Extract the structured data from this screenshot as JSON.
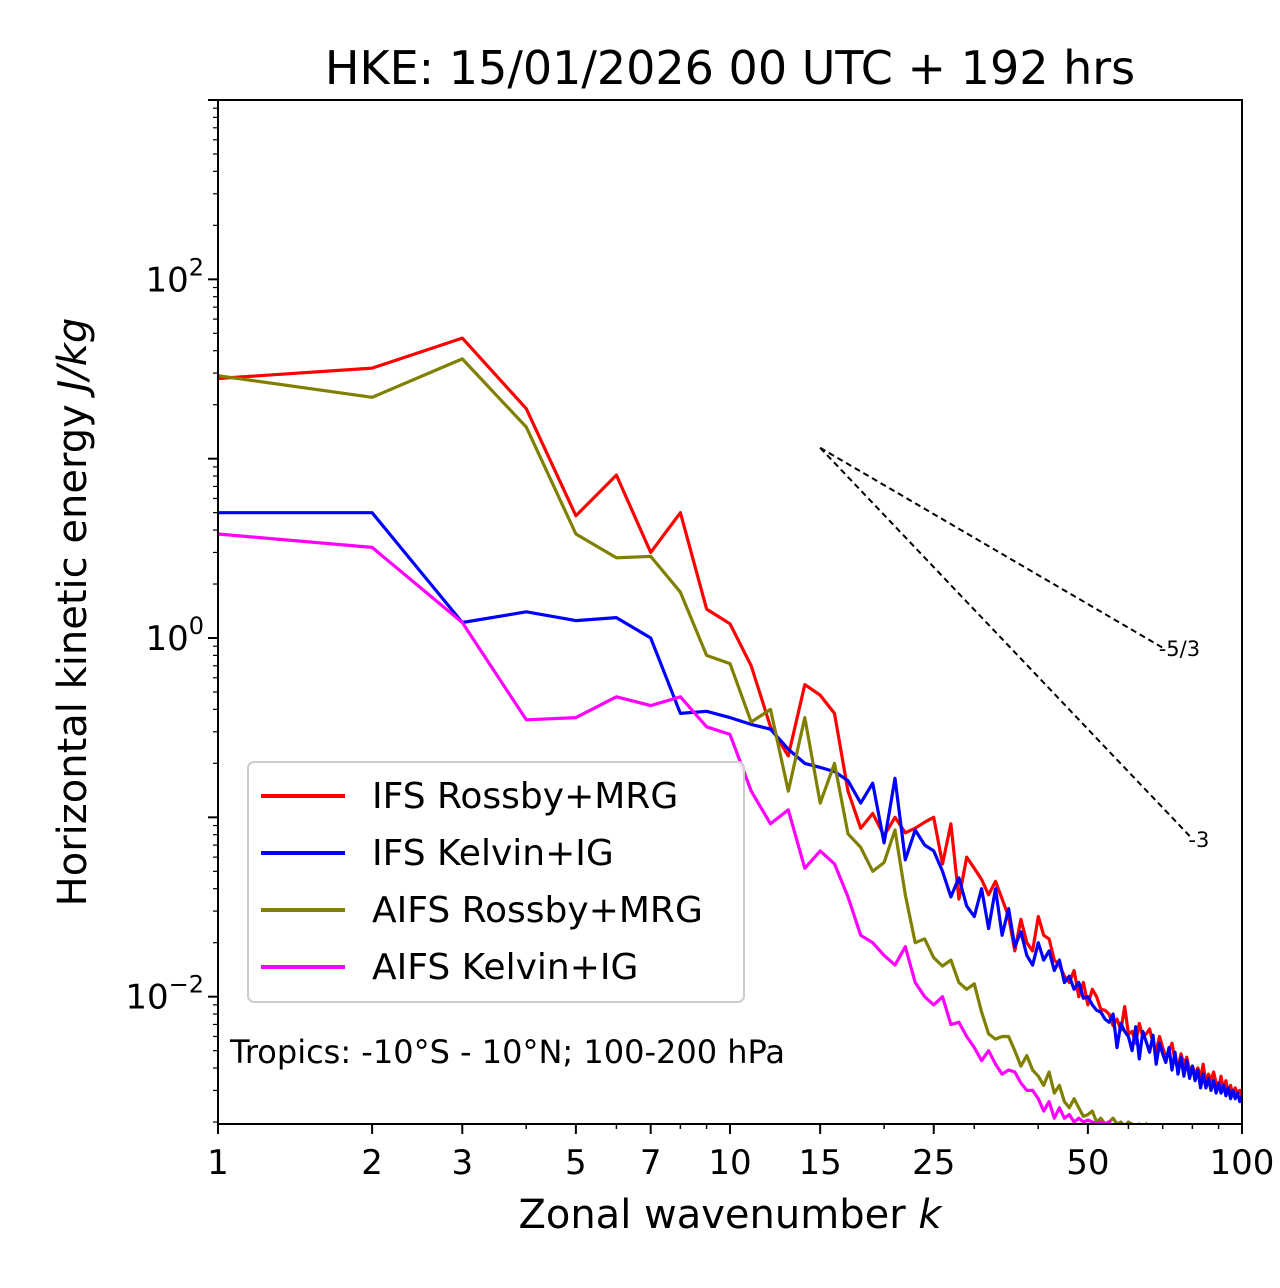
{
  "chart_data": {
    "type": "line",
    "title": "HKE: 15/01/2026 00 UTC + 192 hrs",
    "xlabel": "Zonal wavenumber ",
    "xlabel_italic": "k",
    "ylabel": "Horizontal kinetic energy ",
    "ylabel_italic": "J/kg",
    "xscale": "log",
    "yscale": "log",
    "xlim": [
      1,
      100
    ],
    "ylim": [
      0.00195,
      1000
    ],
    "x_ticks": [
      {
        "value": 1,
        "label": "1"
      },
      {
        "value": 2,
        "label": "2"
      },
      {
        "value": 3,
        "label": "3"
      },
      {
        "value": 5,
        "label": "5"
      },
      {
        "value": 7,
        "label": "7"
      },
      {
        "value": 10,
        "label": "10"
      },
      {
        "value": 15,
        "label": "15"
      },
      {
        "value": 25,
        "label": "25"
      },
      {
        "value": 50,
        "label": "50"
      },
      {
        "value": 100,
        "label": "100"
      }
    ],
    "y_ticks": [
      {
        "value": 100,
        "base": "10",
        "exp": "2"
      },
      {
        "value": 1,
        "base": "10",
        "exp": "0"
      },
      {
        "value": 0.01,
        "base": "10",
        "exp": "−2"
      }
    ],
    "legend": {
      "position": "lower-left"
    },
    "annotation": "Tropics: -10°S - 10°N; 100-200 hPa",
    "reference_slopes": [
      {
        "label": "-5/3",
        "slope": -1.6667,
        "x_start": 15,
        "y_start": 11.5,
        "x_end": 70
      },
      {
        "label": "-3",
        "slope": -3,
        "x_start": 15,
        "y_start": 11.5,
        "x_end": 80
      }
    ],
    "series": [
      {
        "name": "IFS Rossby+MRG",
        "color": "#ff0000",
        "x": [
          1,
          2,
          3,
          4,
          5,
          6,
          7,
          8,
          9,
          10,
          11,
          12,
          13,
          14,
          15,
          16,
          17,
          18,
          19,
          20,
          21,
          22,
          23,
          24,
          25,
          26,
          27,
          28,
          29,
          30,
          31,
          32,
          33,
          34,
          35,
          36,
          37,
          38,
          39,
          40,
          41,
          42,
          43,
          44,
          45,
          46,
          47,
          48,
          49,
          50,
          51,
          52,
          53,
          54,
          55,
          56,
          57,
          58,
          59,
          60,
          61,
          62,
          63,
          64,
          65,
          66,
          67,
          68,
          69,
          70,
          71,
          72,
          73,
          74,
          75,
          76,
          77,
          78,
          79,
          80,
          81,
          82,
          83,
          84,
          85,
          86,
          87,
          88,
          89,
          90,
          91,
          92,
          93,
          94,
          95,
          96,
          97,
          98,
          99,
          100
        ],
        "y": [
          28,
          32,
          47,
          19,
          4.8,
          8.1,
          3.0,
          5.0,
          1.45,
          1.2,
          0.7,
          0.32,
          0.22,
          0.55,
          0.48,
          0.38,
          0.14,
          0.087,
          0.105,
          0.079,
          0.1,
          0.082,
          0.087,
          0.094,
          0.1,
          0.055,
          0.092,
          0.035,
          0.06,
          0.052,
          0.045,
          0.037,
          0.044,
          0.035,
          0.028,
          0.018,
          0.027,
          0.02,
          0.018,
          0.028,
          0.022,
          0.021,
          0.016,
          0.015,
          0.013,
          0.012,
          0.014,
          0.01,
          0.012,
          0.009,
          0.011,
          0.01,
          0.0085,
          0.0084,
          0.008,
          0.0069,
          0.0075,
          0.0065,
          0.0088,
          0.0062,
          0.0064,
          0.0055,
          0.0071,
          0.006,
          0.0062,
          0.0066,
          0.0055,
          0.005,
          0.006,
          0.0052,
          0.0046,
          0.005,
          0.0055,
          0.0044,
          0.004,
          0.0048,
          0.0042,
          0.0046,
          0.0038,
          0.0041,
          0.0037,
          0.004,
          0.0035,
          0.0042,
          0.0033,
          0.0037,
          0.0034,
          0.0038,
          0.0033,
          0.0031,
          0.0036,
          0.003,
          0.0034,
          0.0029,
          0.0032,
          0.0028,
          0.0031,
          0.0029,
          0.003,
          0.0028
        ]
      },
      {
        "name": "IFS Kelvin+IG",
        "color": "#0000ff",
        "x": [
          1,
          2,
          3,
          4,
          5,
          6,
          7,
          8,
          9,
          10,
          11,
          12,
          13,
          14,
          15,
          16,
          17,
          18,
          19,
          20,
          21,
          22,
          23,
          24,
          25,
          26,
          27,
          28,
          29,
          30,
          31,
          32,
          33,
          34,
          35,
          36,
          37,
          38,
          39,
          40,
          41,
          42,
          43,
          44,
          45,
          46,
          47,
          48,
          49,
          50,
          51,
          52,
          53,
          54,
          55,
          56,
          57,
          58,
          59,
          60,
          61,
          62,
          63,
          64,
          65,
          66,
          67,
          68,
          69,
          70,
          71,
          72,
          73,
          74,
          75,
          76,
          77,
          78,
          79,
          80,
          81,
          82,
          83,
          84,
          85,
          86,
          87,
          88,
          89,
          90,
          91,
          92,
          93,
          94,
          95,
          96,
          97,
          98,
          99,
          100
        ],
        "y": [
          5.0,
          5.0,
          1.22,
          1.4,
          1.25,
          1.3,
          1.0,
          0.38,
          0.39,
          0.36,
          0.33,
          0.31,
          0.24,
          0.2,
          0.19,
          0.18,
          0.16,
          0.12,
          0.155,
          0.072,
          0.165,
          0.058,
          0.085,
          0.07,
          0.065,
          0.05,
          0.036,
          0.046,
          0.032,
          0.028,
          0.04,
          0.024,
          0.04,
          0.022,
          0.031,
          0.019,
          0.023,
          0.017,
          0.015,
          0.02,
          0.016,
          0.018,
          0.014,
          0.016,
          0.012,
          0.013,
          0.011,
          0.012,
          0.0098,
          0.01,
          0.009,
          0.0084,
          0.0082,
          0.0075,
          0.0072,
          0.008,
          0.0052,
          0.0071,
          0.0064,
          0.006,
          0.005,
          0.0068,
          0.0045,
          0.0064,
          0.0056,
          0.0049,
          0.0061,
          0.0042,
          0.0055,
          0.0048,
          0.0043,
          0.0052,
          0.0039,
          0.0049,
          0.0037,
          0.0046,
          0.0036,
          0.0044,
          0.0035,
          0.0041,
          0.0034,
          0.0039,
          0.0031,
          0.0037,
          0.0031,
          0.0035,
          0.003,
          0.0034,
          0.0029,
          0.0033,
          0.0029,
          0.0032,
          0.0028,
          0.0031,
          0.0027,
          0.003,
          0.0027,
          0.0029,
          0.0026,
          0.0028
        ]
      },
      {
        "name": "AIFS Rossby+MRG",
        "color": "#808000",
        "x": [
          1,
          2,
          3,
          4,
          5,
          6,
          7,
          8,
          9,
          10,
          11,
          12,
          13,
          14,
          15,
          16,
          17,
          18,
          19,
          20,
          21,
          22,
          23,
          24,
          25,
          26,
          27,
          28,
          29,
          30,
          31,
          32,
          33,
          34,
          35,
          36,
          37,
          38,
          39,
          40,
          41,
          42,
          43,
          44,
          45,
          46,
          47,
          48,
          49,
          50,
          51,
          52,
          53,
          54,
          55,
          56,
          57,
          58,
          59,
          60,
          61,
          62,
          63,
          64,
          65
        ],
        "y": [
          29,
          22,
          36,
          15,
          3.8,
          2.8,
          2.85,
          1.8,
          0.8,
          0.72,
          0.34,
          0.4,
          0.14,
          0.36,
          0.12,
          0.2,
          0.081,
          0.068,
          0.05,
          0.056,
          0.085,
          0.037,
          0.02,
          0.021,
          0.0165,
          0.0148,
          0.016,
          0.012,
          0.011,
          0.0118,
          0.0082,
          0.0062,
          0.0058,
          0.006,
          0.006,
          0.005,
          0.0041,
          0.0047,
          0.0039,
          0.0036,
          0.0032,
          0.0038,
          0.0029,
          0.0032,
          0.0026,
          0.0024,
          0.0027,
          0.0024,
          0.00215,
          0.0022,
          0.0023,
          0.002,
          0.0021,
          0.00195,
          0.002,
          0.0021,
          0.00195,
          0.002,
          0.0019,
          0.002,
          0.00195,
          0.0019,
          0.00195,
          0.0019,
          0.00195
        ]
      },
      {
        "name": "AIFS Kelvin+IG",
        "color": "#ff00ff",
        "x": [
          1,
          2,
          3,
          4,
          5,
          6,
          7,
          8,
          9,
          10,
          11,
          12,
          13,
          14,
          15,
          16,
          17,
          18,
          19,
          20,
          21,
          22,
          23,
          24,
          25,
          26,
          27,
          28,
          29,
          30,
          31,
          32,
          33,
          34,
          35,
          36,
          37,
          38,
          39,
          40,
          41,
          42,
          43,
          44,
          45,
          46,
          47,
          48,
          49,
          50,
          51,
          52,
          53,
          54,
          55
        ],
        "y": [
          3.8,
          3.2,
          1.22,
          0.35,
          0.36,
          0.47,
          0.42,
          0.47,
          0.32,
          0.29,
          0.14,
          0.092,
          0.11,
          0.052,
          0.065,
          0.055,
          0.036,
          0.022,
          0.02,
          0.017,
          0.015,
          0.019,
          0.012,
          0.01,
          0.009,
          0.01,
          0.007,
          0.0072,
          0.006,
          0.0052,
          0.0044,
          0.005,
          0.0042,
          0.0037,
          0.0039,
          0.0038,
          0.0033,
          0.003,
          0.003,
          0.0027,
          0.0023,
          0.0026,
          0.0021,
          0.0024,
          0.0021,
          0.0022,
          0.002,
          0.0021,
          0.002,
          0.00205,
          0.002,
          0.00195,
          0.002,
          0.00195,
          0.002
        ]
      }
    ]
  }
}
